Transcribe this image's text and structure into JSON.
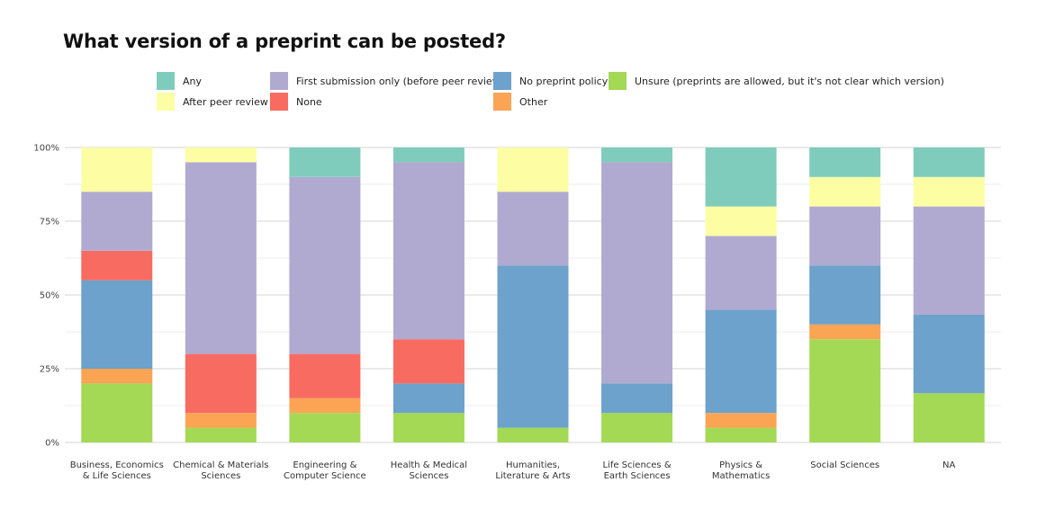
{
  "chart_data": {
    "type": "bar",
    "stacked": true,
    "title": "What version of a preprint can be posted?",
    "categories": [
      [
        "Business, Economics",
        "& Life Sciences"
      ],
      [
        "Chemical & Materials",
        "Sciences"
      ],
      [
        "Engineering &",
        "Computer Science"
      ],
      [
        "Health & Medical",
        "Sciences"
      ],
      [
        "Humanities,",
        "Literature & Arts"
      ],
      [
        "Life Sciences &",
        "Earth Sciences"
      ],
      [
        "Physics &",
        "Mathematics"
      ],
      [
        "Social Sciences"
      ],
      [
        "NA"
      ]
    ],
    "ylim": [
      0,
      100
    ],
    "yticks": [
      0,
      25,
      50,
      75,
      100
    ],
    "ytick_labels": [
      "0%",
      "25%",
      "50%",
      "75%",
      "100%"
    ],
    "grid": true,
    "legend_position": "top",
    "series": [
      {
        "name": "Unsure (preprints are allowed, but it's not clear which version)",
        "color": "#a3d955",
        "values": [
          20,
          5,
          10,
          10,
          5,
          10,
          5,
          35,
          16.7
        ]
      },
      {
        "name": "Other",
        "color": "#fba454",
        "values": [
          5,
          5,
          5,
          0,
          0,
          0,
          5,
          5,
          0
        ]
      },
      {
        "name": "No preprint policy",
        "color": "#6ca2cb",
        "values": [
          30,
          0,
          0,
          10,
          55,
          10,
          35,
          20,
          26.6
        ]
      },
      {
        "name": "None",
        "color": "#f86b61",
        "values": [
          10,
          20,
          15,
          15,
          0,
          0,
          0,
          0,
          0
        ]
      },
      {
        "name": "First submission only (before peer review)",
        "color": "#b0aad1",
        "values": [
          20,
          65,
          60,
          60,
          25,
          75,
          25,
          20,
          36.7
        ]
      },
      {
        "name": "After peer review",
        "color": "#fdfea4",
        "values": [
          15,
          5,
          0,
          0,
          15,
          0,
          10,
          10,
          10
        ]
      },
      {
        "name": "Any",
        "color": "#80ccbc",
        "values": [
          0,
          0,
          10,
          5,
          0,
          5,
          20,
          10,
          10
        ]
      }
    ],
    "legend_order": [
      "Any",
      "First submission only (before peer review)",
      "No preprint policy",
      "Unsure (preprints are allowed, but it's not clear which version)",
      "After peer review",
      "None",
      "Other"
    ]
  }
}
